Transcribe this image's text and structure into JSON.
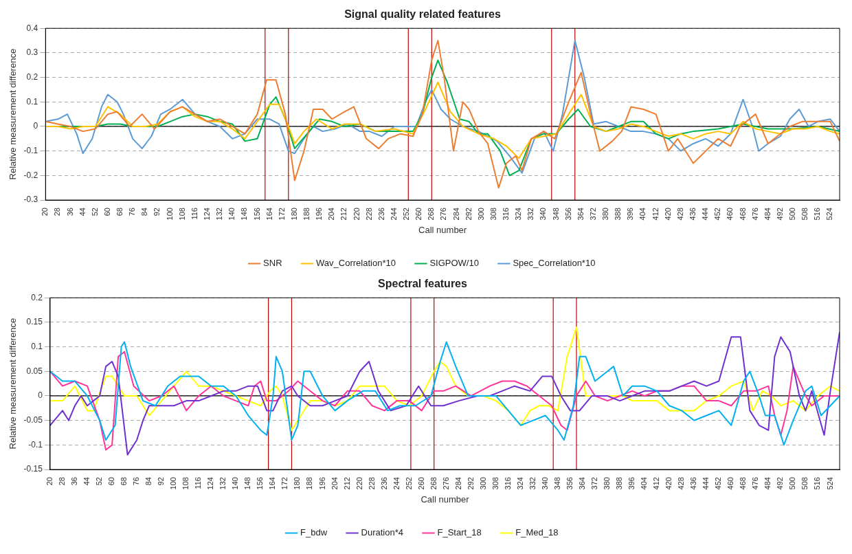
{
  "chart_data": [
    {
      "type": "line",
      "title": "Signal quality related features",
      "xlabel": "Call number",
      "ylabel": "Relative measurement difference",
      "xlim": [
        20,
        530
      ],
      "xticks": [
        20,
        28,
        36,
        44,
        52,
        60,
        68,
        76,
        84,
        92,
        100,
        108,
        116,
        124,
        132,
        140,
        148,
        156,
        164,
        172,
        180,
        188,
        196,
        204,
        212,
        220,
        228,
        236,
        244,
        252,
        260,
        268,
        276,
        284,
        292,
        300,
        308,
        316,
        324,
        332,
        340,
        348,
        356,
        364,
        372,
        380,
        388,
        396,
        404,
        412,
        420,
        428,
        436,
        444,
        452,
        460,
        468,
        476,
        484,
        492,
        500,
        508,
        516,
        524
      ],
      "ylim": [
        -0.3,
        0.4
      ],
      "yticks": [
        -0.3,
        -0.2,
        -0.1,
        0,
        0.1,
        0.2,
        0.3,
        0.4
      ],
      "grid": "y",
      "legend": "bottom",
      "marker": "none",
      "line_style": "solid",
      "ref_lines": [
        {
          "axis": "y",
          "value": 0,
          "color": "#000000"
        },
        {
          "axis": "x",
          "value": 161,
          "color": "#c00000"
        },
        {
          "axis": "x",
          "value": 176,
          "color": "#c00000"
        },
        {
          "axis": "x",
          "value": 253,
          "color": "#c00000"
        },
        {
          "axis": "x",
          "value": 268,
          "color": "#c00000"
        },
        {
          "axis": "x",
          "value": 345,
          "color": "#c00000"
        },
        {
          "axis": "x",
          "value": 360,
          "color": "#c00000"
        }
      ],
      "series": [
        {
          "name": "SNR",
          "color": "#ed7d31",
          "x": [
            20,
            28,
            36,
            44,
            52,
            60,
            66,
            74,
            82,
            90,
            100,
            108,
            116,
            124,
            132,
            140,
            148,
            156,
            162,
            168,
            174,
            180,
            186,
            192,
            198,
            204,
            212,
            218,
            226,
            234,
            240,
            248,
            256,
            262,
            268,
            272,
            276,
            282,
            288,
            292,
            298,
            304,
            311,
            316,
            322,
            326,
            332,
            340,
            347,
            356,
            364,
            370,
            376,
            384,
            390,
            396,
            404,
            412,
            420,
            426,
            436,
            444,
            452,
            460,
            466,
            476,
            484,
            490,
            498,
            506,
            516,
            524,
            530
          ],
          "values": [
            0.02,
            0.01,
            0,
            -0.02,
            -0.01,
            0.05,
            0.06,
            0,
            0.05,
            -0.01,
            0.06,
            0.08,
            0.05,
            0.02,
            0.03,
            0,
            -0.03,
            0.05,
            0.19,
            0.19,
            0.05,
            -0.22,
            -0.1,
            0.07,
            0.07,
            0.03,
            0.06,
            0.08,
            -0.05,
            -0.09,
            -0.05,
            -0.03,
            -0.04,
            0.05,
            0.27,
            0.35,
            0.2,
            -0.1,
            0.1,
            0.07,
            -0.02,
            -0.07,
            -0.25,
            -0.15,
            -0.12,
            -0.18,
            -0.05,
            -0.02,
            -0.05,
            0.1,
            0.22,
            0.05,
            -0.1,
            -0.06,
            -0.02,
            0.08,
            0.07,
            0.05,
            -0.1,
            -0.05,
            -0.15,
            -0.1,
            -0.05,
            -0.08,
            0,
            0.05,
            -0.07,
            -0.04,
            0,
            0.02,
            0.02,
            0.02,
            -0.06
          ]
        },
        {
          "name": "Wav_Correlation*10",
          "color": "#ffc000",
          "x": [
            20,
            28,
            36,
            44,
            52,
            60,
            68,
            76,
            84,
            92,
            100,
            108,
            116,
            124,
            132,
            140,
            148,
            156,
            164,
            170,
            176,
            180,
            186,
            194,
            204,
            212,
            222,
            232,
            244,
            256,
            264,
            272,
            280,
            288,
            298,
            308,
            316,
            324,
            332,
            340,
            348,
            356,
            364,
            372,
            380,
            388,
            396,
            404,
            412,
            420,
            428,
            436,
            444,
            452,
            460,
            468,
            476,
            484,
            492,
            500,
            508,
            516,
            524,
            530
          ],
          "values": [
            0,
            0,
            -0.01,
            0,
            0,
            0.08,
            0.05,
            0,
            0,
            0.01,
            0.06,
            0.08,
            0.04,
            0.02,
            0.02,
            -0.01,
            -0.05,
            0.02,
            0.09,
            0.09,
            0,
            -0.07,
            -0.02,
            0.03,
            -0.01,
            0.01,
            0.01,
            -0.02,
            -0.01,
            -0.03,
            0.07,
            0.18,
            0.06,
            0,
            -0.03,
            -0.05,
            -0.08,
            -0.13,
            -0.05,
            -0.04,
            -0.03,
            0.05,
            0.13,
            0,
            -0.02,
            -0.01,
            0.01,
            0,
            -0.02,
            -0.04,
            -0.03,
            -0.05,
            -0.03,
            -0.02,
            -0.03,
            0.02,
            -0.01,
            -0.02,
            -0.03,
            -0.01,
            -0.01,
            0,
            -0.02,
            -0.03
          ]
        },
        {
          "name": "SIGPOW/10",
          "color": "#00b050",
          "x": [
            20,
            36,
            52,
            60,
            68,
            76,
            92,
            100,
            108,
            116,
            124,
            132,
            140,
            148,
            156,
            164,
            168,
            174,
            180,
            188,
            196,
            204,
            212,
            222,
            232,
            244,
            256,
            262,
            268,
            272,
            278,
            286,
            292,
            298,
            304,
            312,
            318,
            324,
            332,
            340,
            348,
            356,
            362,
            370,
            380,
            388,
            396,
            404,
            412,
            420,
            428,
            436,
            452,
            468,
            484,
            500,
            516,
            530
          ],
          "values": [
            0,
            0,
            0,
            0.01,
            0.01,
            0,
            0,
            0.02,
            0.04,
            0.05,
            0.04,
            0.02,
            0.01,
            -0.06,
            -0.05,
            0.09,
            0.12,
            0.03,
            -0.09,
            -0.03,
            0.03,
            0.02,
            0,
            0.01,
            -0.02,
            -0.02,
            -0.02,
            0.05,
            0.2,
            0.27,
            0.18,
            0.03,
            0.02,
            -0.03,
            -0.03,
            -0.1,
            -0.2,
            -0.18,
            -0.05,
            -0.03,
            -0.03,
            0.03,
            0.07,
            0,
            -0.02,
            0,
            0.02,
            0.02,
            -0.03,
            -0.05,
            -0.03,
            -0.02,
            -0.01,
            0.01,
            -0.01,
            -0.01,
            0,
            -0.02
          ]
        },
        {
          "name": "Spec_Correlation*10",
          "color": "#5b9bd5",
          "x": [
            20,
            28,
            34,
            40,
            44,
            50,
            56,
            60,
            66,
            70,
            76,
            82,
            88,
            94,
            100,
            108,
            116,
            124,
            132,
            140,
            148,
            156,
            164,
            170,
            176,
            180,
            186,
            192,
            198,
            206,
            214,
            222,
            228,
            236,
            244,
            252,
            258,
            264,
            268,
            274,
            280,
            288,
            298,
            310,
            318,
            326,
            334,
            340,
            346,
            352,
            360,
            366,
            372,
            380,
            388,
            396,
            404,
            412,
            420,
            428,
            436,
            444,
            452,
            460,
            468,
            474,
            478,
            484,
            492,
            498,
            504,
            510,
            516,
            524,
            530
          ],
          "values": [
            0.02,
            0.03,
            0.05,
            -0.03,
            -0.11,
            -0.05,
            0.08,
            0.13,
            0.1,
            0.05,
            -0.05,
            -0.09,
            -0.04,
            0.05,
            0.07,
            0.11,
            0.05,
            0.02,
            0,
            -0.05,
            -0.03,
            0.03,
            0.03,
            0.01,
            -0.1,
            -0.11,
            -0.05,
            0,
            -0.02,
            -0.01,
            0.01,
            -0.02,
            -0.02,
            -0.04,
            0,
            0,
            0,
            0.1,
            0.15,
            0.07,
            0.03,
            0,
            -0.02,
            -0.06,
            -0.12,
            -0.19,
            -0.05,
            -0.02,
            -0.1,
            0.05,
            0.35,
            0.2,
            0.01,
            0.02,
            0,
            -0.02,
            -0.02,
            -0.03,
            -0.05,
            -0.1,
            -0.07,
            -0.05,
            -0.08,
            -0.03,
            0.11,
            0,
            -0.1,
            -0.07,
            -0.04,
            0.03,
            0.07,
            0,
            0.02,
            0.03,
            -0.02
          ]
        }
      ]
    },
    {
      "type": "line",
      "title": "Spectral features",
      "xlabel": "Call number",
      "ylabel": "Relative measurement difference",
      "xlim": [
        20,
        530
      ],
      "xticks": [
        20,
        28,
        36,
        44,
        52,
        60,
        68,
        76,
        84,
        92,
        100,
        108,
        116,
        124,
        132,
        140,
        148,
        156,
        164,
        172,
        180,
        188,
        196,
        204,
        212,
        220,
        228,
        236,
        244,
        252,
        260,
        268,
        276,
        284,
        292,
        300,
        308,
        316,
        324,
        332,
        340,
        348,
        356,
        364,
        372,
        380,
        388,
        396,
        404,
        412,
        420,
        428,
        436,
        444,
        452,
        460,
        468,
        476,
        484,
        492,
        500,
        508,
        516,
        524
      ],
      "ylim": [
        -0.15,
        0.2
      ],
      "yticks": [
        -0.15,
        -0.1,
        -0.05,
        0,
        0.05,
        0.1,
        0.15,
        0.2
      ],
      "grid": "y",
      "legend": "bottom",
      "marker": "none",
      "line_style": "solid",
      "ref_lines": [
        {
          "axis": "y",
          "value": 0,
          "color": "#000000"
        },
        {
          "axis": "x",
          "value": 161,
          "color": "#c00000"
        },
        {
          "axis": "x",
          "value": 176,
          "color": "#c00000"
        },
        {
          "axis": "x",
          "value": 253,
          "color": "#c00000"
        },
        {
          "axis": "x",
          "value": 268,
          "color": "#c00000"
        },
        {
          "axis": "x",
          "value": 345,
          "color": "#c00000"
        },
        {
          "axis": "x",
          "value": 360,
          "color": "#c00000"
        }
      ],
      "series": [
        {
          "name": "F_bdw",
          "color": "#00b0f0",
          "x": [
            20,
            28,
            36,
            44,
            52,
            56,
            62,
            66,
            68,
            72,
            80,
            88,
            96,
            104,
            108,
            116,
            124,
            132,
            140,
            148,
            156,
            160,
            164,
            166,
            170,
            176,
            180,
            184,
            188,
            196,
            204,
            212,
            222,
            230,
            238,
            246,
            256,
            266,
            272,
            276,
            282,
            290,
            300,
            308,
            316,
            324,
            332,
            340,
            348,
            352,
            358,
            362,
            366,
            372,
            380,
            384,
            390,
            396,
            404,
            412,
            420,
            428,
            436,
            444,
            452,
            460,
            468,
            472,
            478,
            482,
            488,
            494,
            500,
            508,
            512,
            518,
            524,
            530
          ],
          "values": [
            0.05,
            0.03,
            0.03,
            0,
            -0.05,
            -0.09,
            -0.06,
            0.1,
            0.11,
            0.06,
            -0.01,
            -0.02,
            0.02,
            0.04,
            0.04,
            0.04,
            0.02,
            0.02,
            0,
            -0.04,
            -0.07,
            -0.08,
            0,
            0.08,
            0.05,
            -0.09,
            -0.06,
            0.05,
            0.05,
            0,
            -0.03,
            -0.01,
            0.01,
            0.01,
            -0.03,
            -0.02,
            -0.02,
            0,
            0.07,
            0.11,
            0.06,
            0,
            0,
            0,
            -0.03,
            -0.06,
            -0.05,
            -0.04,
            -0.07,
            -0.09,
            -0.02,
            0.08,
            0.08,
            0.03,
            0.05,
            0.06,
            0,
            0.02,
            0.02,
            0.01,
            -0.02,
            -0.03,
            -0.05,
            -0.04,
            -0.03,
            -0.06,
            0.03,
            0.05,
            0,
            -0.04,
            -0.04,
            -0.1,
            -0.05,
            0.01,
            0.02,
            -0.04,
            -0.02,
            0
          ]
        },
        {
          "name": "Duration*4",
          "color": "#7030d0",
          "x": [
            20,
            28,
            32,
            36,
            40,
            44,
            48,
            52,
            56,
            60,
            64,
            70,
            76,
            80,
            84,
            90,
            100,
            108,
            116,
            124,
            132,
            140,
            148,
            154,
            160,
            164,
            170,
            176,
            180,
            188,
            196,
            204,
            212,
            220,
            226,
            232,
            240,
            250,
            258,
            266,
            274,
            284,
            296,
            304,
            312,
            320,
            330,
            338,
            344,
            350,
            356,
            362,
            370,
            380,
            388,
            396,
            404,
            412,
            420,
            428,
            436,
            444,
            452,
            460,
            466,
            472,
            478,
            484,
            488,
            492,
            498,
            504,
            508,
            512,
            520,
            524,
            530
          ],
          "values": [
            -0.06,
            -0.03,
            -0.05,
            -0.02,
            0,
            -0.02,
            -0.01,
            0,
            0.06,
            0.07,
            0.04,
            -0.12,
            -0.09,
            -0.05,
            -0.02,
            -0.02,
            -0.02,
            -0.01,
            -0.01,
            0,
            0.01,
            0.01,
            0.02,
            0.02,
            -0.03,
            -0.03,
            0.01,
            0.02,
            0,
            -0.02,
            -0.02,
            -0.01,
            0,
            0.05,
            0.07,
            0.01,
            -0.03,
            -0.02,
            0.02,
            -0.02,
            -0.02,
            -0.01,
            0,
            0,
            0.01,
            0.02,
            0.01,
            0.04,
            0.04,
            0,
            -0.03,
            -0.03,
            0,
            0,
            -0.01,
            0,
            0.01,
            0.01,
            0.01,
            0.02,
            0.03,
            0.02,
            0.03,
            0.12,
            0.12,
            -0.03,
            -0.06,
            -0.07,
            0.08,
            0.12,
            0.09,
            0,
            -0.03,
            0.01,
            -0.08,
            0.01,
            0.13
          ]
        },
        {
          "name": "F_Start_18",
          "color": "#ff3399",
          "x": [
            20,
            28,
            36,
            44,
            52,
            56,
            60,
            64,
            68,
            74,
            84,
            92,
            100,
            108,
            116,
            124,
            132,
            140,
            148,
            152,
            156,
            160,
            166,
            174,
            180,
            188,
            196,
            204,
            212,
            220,
            228,
            236,
            244,
            252,
            260,
            268,
            274,
            282,
            292,
            304,
            312,
            320,
            328,
            336,
            344,
            350,
            354,
            360,
            366,
            372,
            380,
            388,
            396,
            404,
            412,
            420,
            428,
            436,
            444,
            452,
            460,
            468,
            476,
            484,
            488,
            492,
            496,
            500,
            504,
            508,
            512,
            520,
            530
          ],
          "values": [
            0.05,
            0.02,
            0.03,
            0.02,
            -0.05,
            -0.11,
            -0.1,
            0.08,
            0.09,
            0.02,
            -0.01,
            0,
            0.02,
            -0.03,
            0,
            0.02,
            0,
            -0.01,
            -0.02,
            0.02,
            0.03,
            -0.01,
            -0.01,
            0.01,
            0.03,
            0.01,
            -0.01,
            -0.02,
            0.01,
            0.01,
            -0.02,
            -0.03,
            -0.01,
            -0.01,
            -0.03,
            0.01,
            0.01,
            0.02,
            0,
            0.02,
            0.03,
            0.03,
            0.02,
            0,
            -0.02,
            -0.06,
            -0.07,
            0,
            0.03,
            0,
            -0.01,
            0,
            0.01,
            0,
            0.01,
            0.01,
            0.02,
            0.02,
            -0.01,
            -0.01,
            -0.02,
            0.01,
            0.01,
            0.02,
            -0.04,
            -0.08,
            -0.03,
            0.06,
            0.03,
            0,
            -0.02,
            0,
            0
          ]
        },
        {
          "name": "F_Med_18",
          "color": "#ffff00",
          "x": [
            20,
            28,
            36,
            44,
            48,
            56,
            60,
            68,
            76,
            84,
            92,
            100,
            108,
            116,
            124,
            132,
            140,
            148,
            156,
            162,
            166,
            170,
            176,
            182,
            188,
            196,
            204,
            212,
            220,
            228,
            236,
            244,
            252,
            260,
            268,
            272,
            276,
            282,
            290,
            300,
            308,
            316,
            324,
            330,
            336,
            342,
            348,
            354,
            360,
            366,
            372,
            380,
            390,
            396,
            404,
            412,
            420,
            428,
            436,
            444,
            452,
            460,
            468,
            474,
            480,
            486,
            492,
            500,
            508,
            516,
            524,
            530
          ],
          "values": [
            -0.01,
            -0.01,
            0.02,
            -0.03,
            -0.03,
            0.04,
            0.04,
            0,
            0,
            -0.04,
            -0.01,
            0.02,
            0.05,
            0.02,
            0.02,
            0.01,
            0,
            -0.01,
            -0.02,
            0.01,
            0.02,
            0,
            -0.07,
            -0.04,
            -0.01,
            -0.01,
            -0.02,
            -0.01,
            0.02,
            0.02,
            0.02,
            -0.01,
            -0.02,
            0,
            0.05,
            0.07,
            0.06,
            0.02,
            0,
            0,
            -0.01,
            -0.03,
            -0.06,
            -0.03,
            -0.02,
            -0.02,
            -0.03,
            0.08,
            0.14,
            0,
            0,
            0,
            0,
            -0.01,
            -0.01,
            -0.01,
            -0.03,
            -0.03,
            -0.03,
            -0.01,
            0,
            0.02,
            0.03,
            -0.03,
            0.01,
            0,
            -0.02,
            -0.01,
            -0.03,
            0,
            0.02,
            0.01
          ]
        }
      ]
    }
  ]
}
